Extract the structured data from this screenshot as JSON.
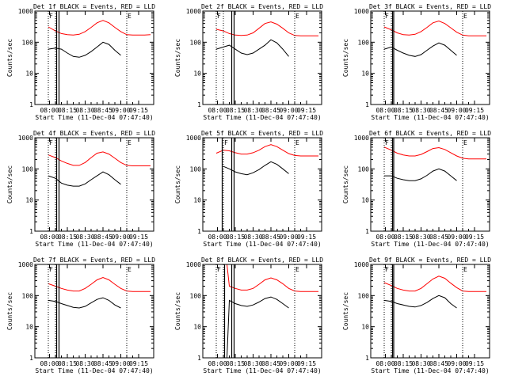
{
  "chart_data": [
    {
      "type": "line",
      "title": "Det 1f BLACK = Events, RED = LLD",
      "xlabel": "Start Time (11-Dec-04 07:47:40)",
      "ylabel": "Counts/sec",
      "yscale": "log",
      "ylim": [
        1,
        1000
      ],
      "xlim": [
        "07:47:40",
        "09:27:40"
      ],
      "xtick_labels": [
        "08:00",
        "08:15",
        "08:30",
        "08:45",
        "09:00",
        "09:15"
      ],
      "ytick_labels": [
        "1",
        "10",
        "100",
        "1000"
      ],
      "markers": [
        "F",
        "E"
      ],
      "dotted_lines": [
        "07:59",
        "08:05",
        "09:05"
      ],
      "solid_lines": [
        "08:06",
        "08:08"
      ],
      "x": [
        "07:59",
        "08:05",
        "08:10",
        "08:15",
        "08:20",
        "08:25",
        "08:30",
        "08:35",
        "08:40",
        "08:45",
        "08:50",
        "08:55",
        "09:00",
        "09:05",
        "09:10",
        "09:15",
        "09:20",
        "09:25"
      ],
      "series": [
        {
          "name": "RED = LLD",
          "color": "#ff0000",
          "values": [
            310,
            230,
            190,
            175,
            170,
            180,
            220,
            300,
            420,
            500,
            420,
            300,
            220,
            175,
            170,
            170,
            170,
            175
          ]
        },
        {
          "name": "BLACK = Events",
          "color": "#000000",
          "values": [
            60,
            65,
            60,
            45,
            35,
            33,
            38,
            50,
            70,
            100,
            85,
            55,
            38,
            null,
            null,
            null,
            null,
            null
          ]
        }
      ]
    },
    {
      "type": "line",
      "title": "Det 2f BLACK = Events, RED = LLD",
      "xlabel": "Start Time (11-Dec-04 07:47:40)",
      "ylabel": "Counts/sec",
      "yscale": "log",
      "ylim": [
        1,
        1000
      ],
      "xlim": [
        "07:47:40",
        "09:27:40"
      ],
      "xtick_labels": [
        "08:00",
        "08:15",
        "08:30",
        "08:45",
        "09:00",
        "09:15"
      ],
      "ytick_labels": [
        "1",
        "10",
        "100",
        "1000"
      ],
      "markers": [
        "F",
        "E"
      ],
      "dotted_lines": [
        "07:59",
        "08:05",
        "09:05"
      ],
      "solid_lines": [
        "08:12",
        "08:14"
      ],
      "x": [
        "07:59",
        "08:05",
        "08:10",
        "08:15",
        "08:20",
        "08:25",
        "08:30",
        "08:35",
        "08:40",
        "08:45",
        "08:50",
        "08:55",
        "09:00",
        "09:05",
        "09:10",
        "09:15",
        "09:20",
        "09:25"
      ],
      "series": [
        {
          "name": "RED = LLD",
          "color": "#ff0000",
          "values": [
            260,
            230,
            190,
            170,
            165,
            170,
            200,
            280,
            400,
            450,
            380,
            280,
            200,
            165,
            160,
            160,
            160,
            160
          ]
        },
        {
          "name": "BLACK = Events",
          "color": "#000000",
          "values": [
            60,
            70,
            80,
            60,
            45,
            40,
            45,
            60,
            80,
            120,
            95,
            60,
            35,
            null,
            null,
            null,
            null,
            null
          ]
        }
      ]
    },
    {
      "type": "line",
      "title": "Det 3f BLACK = Events, RED = LLD",
      "xlabel": "Start Time (11-Dec-04 07:47:40)",
      "ylabel": "Counts/sec",
      "yscale": "log",
      "ylim": [
        1,
        1000
      ],
      "xlim": [
        "07:47:40",
        "09:27:40"
      ],
      "xtick_labels": [
        "08:00",
        "08:15",
        "08:30",
        "08:45",
        "09:00",
        "09:15"
      ],
      "ytick_labels": [
        "1",
        "10",
        "100",
        "1000"
      ],
      "markers": [
        "F",
        "E"
      ],
      "dotted_lines": [
        "07:59",
        "08:05",
        "09:05"
      ],
      "solid_lines": [
        "08:06",
        "08:07"
      ],
      "x": [
        "07:59",
        "08:05",
        "08:10",
        "08:15",
        "08:20",
        "08:25",
        "08:30",
        "08:35",
        "08:40",
        "08:45",
        "08:50",
        "08:55",
        "09:00",
        "09:05",
        "09:10",
        "09:15",
        "09:20",
        "09:25"
      ],
      "series": [
        {
          "name": "RED = LLD",
          "color": "#ff0000",
          "values": [
            310,
            250,
            200,
            175,
            170,
            180,
            220,
            300,
            420,
            480,
            400,
            290,
            210,
            170,
            160,
            160,
            160,
            160
          ]
        },
        {
          "name": "BLACK = Events",
          "color": "#000000",
          "values": [
            60,
            70,
            55,
            45,
            38,
            35,
            40,
            55,
            75,
            95,
            80,
            55,
            38,
            null,
            null,
            null,
            null,
            null
          ]
        }
      ]
    },
    {
      "type": "line",
      "title": "Det 4f BLACK = Events, RED = LLD",
      "xlabel": "Start Time (11-Dec-04 07:47:40)",
      "ylabel": "Counts/sec",
      "yscale": "log",
      "ylim": [
        1,
        1000
      ],
      "xlim": [
        "07:47:40",
        "09:27:40"
      ],
      "xtick_labels": [
        "08:00",
        "08:15",
        "08:30",
        "08:45",
        "09:00",
        "09:15"
      ],
      "ytick_labels": [
        "1",
        "10",
        "100",
        "1000"
      ],
      "markers": [
        "F",
        "E"
      ],
      "dotted_lines": [
        "07:59",
        "08:05",
        "09:05"
      ],
      "solid_lines": [
        "08:06",
        "08:08"
      ],
      "x": [
        "07:59",
        "08:05",
        "08:10",
        "08:15",
        "08:20",
        "08:25",
        "08:30",
        "08:35",
        "08:40",
        "08:45",
        "08:50",
        "08:55",
        "09:00",
        "09:05",
        "09:10",
        "09:15",
        "09:20",
        "09:25"
      ],
      "series": [
        {
          "name": "RED = LLD",
          "color": "#ff0000",
          "values": [
            280,
            230,
            180,
            150,
            130,
            130,
            160,
            230,
            320,
            350,
            300,
            220,
            160,
            130,
            125,
            125,
            125,
            125
          ]
        },
        {
          "name": "BLACK = Events",
          "color": "#000000",
          "values": [
            60,
            50,
            35,
            30,
            28,
            28,
            33,
            45,
            60,
            80,
            65,
            45,
            32,
            null,
            null,
            null,
            null,
            null
          ]
        }
      ]
    },
    {
      "type": "line",
      "title": "Det 5f BLACK = Events, RED = LLD",
      "xlabel": "Start Time (11-Dec-04 07:47:40)",
      "ylabel": "Counts/sec",
      "yscale": "log",
      "ylim": [
        1,
        1000
      ],
      "xlim": [
        "07:47:40",
        "09:27:40"
      ],
      "xtick_labels": [
        "08:00",
        "08:15",
        "08:30",
        "08:45",
        "09:00",
        "09:15"
      ],
      "ytick_labels": [
        "1",
        "10",
        "100",
        "1000"
      ],
      "markers": [
        "F",
        "E"
      ],
      "dotted_lines": [
        "08:05",
        "09:05"
      ],
      "solid_lines": [
        "08:04",
        "08:12",
        "08:14"
      ],
      "x": [
        "07:59",
        "08:05",
        "08:10",
        "08:15",
        "08:20",
        "08:25",
        "08:30",
        "08:35",
        "08:40",
        "08:45",
        "08:50",
        "08:55",
        "09:00",
        "09:05",
        "09:10",
        "09:15",
        "09:20",
        "09:25"
      ],
      "series": [
        {
          "name": "RED = LLD",
          "color": "#ff0000",
          "values": [
            320,
            400,
            380,
            330,
            300,
            300,
            330,
            400,
            520,
            600,
            520,
            400,
            310,
            270,
            260,
            260,
            260,
            260
          ]
        },
        {
          "name": "BLACK = Events",
          "color": "#000000",
          "values": [
            null,
            120,
            100,
            80,
            70,
            65,
            75,
            95,
            130,
            170,
            140,
            100,
            70,
            null,
            null,
            null,
            null,
            null
          ]
        }
      ]
    },
    {
      "type": "line",
      "title": "Det 6f BLACK = Events, RED = LLD",
      "xlabel": "Start Time (11-Dec-04 07:47:40)",
      "ylabel": "Counts/sec",
      "yscale": "log",
      "ylim": [
        1,
        1000
      ],
      "xlim": [
        "07:47:40",
        "09:27:40"
      ],
      "xtick_labels": [
        "08:00",
        "08:15",
        "08:30",
        "08:45",
        "09:00",
        "09:15"
      ],
      "ytick_labels": [
        "1",
        "10",
        "100",
        "1000"
      ],
      "markers": [
        "F",
        "E"
      ],
      "dotted_lines": [
        "07:59",
        "08:05",
        "09:05"
      ],
      "solid_lines": [
        "08:06",
        "08:07"
      ],
      "x": [
        "07:59",
        "08:05",
        "08:10",
        "08:15",
        "08:20",
        "08:25",
        "08:30",
        "08:35",
        "08:40",
        "08:45",
        "08:50",
        "08:55",
        "09:00",
        "09:05",
        "09:10",
        "09:15",
        "09:20",
        "09:25"
      ],
      "series": [
        {
          "name": "RED = LLD",
          "color": "#ff0000",
          "values": [
            500,
            400,
            320,
            280,
            260,
            260,
            290,
            360,
            450,
            480,
            420,
            330,
            260,
            220,
            210,
            210,
            210,
            210
          ]
        },
        {
          "name": "BLACK = Events",
          "color": "#000000",
          "values": [
            60,
            60,
            50,
            45,
            42,
            42,
            48,
            62,
            85,
            100,
            85,
            60,
            42,
            null,
            null,
            null,
            null,
            null
          ]
        }
      ]
    },
    {
      "type": "line",
      "title": "Det 7f BLACK = Events, RED = LLD",
      "xlabel": "Start Time (11-Dec-04 07:47:40)",
      "ylabel": "Counts/sec",
      "yscale": "log",
      "ylim": [
        1,
        1000
      ],
      "xlim": [
        "07:47:40",
        "09:27:40"
      ],
      "xtick_labels": [
        "08:00",
        "08:15",
        "08:30",
        "08:45",
        "09:00",
        "09:15"
      ],
      "ytick_labels": [
        "1",
        "10",
        "100",
        "1000"
      ],
      "markers": [
        "F",
        "E"
      ],
      "dotted_lines": [
        "07:59",
        "08:05",
        "09:05"
      ],
      "solid_lines": [
        "08:06",
        "08:08"
      ],
      "x": [
        "07:59",
        "08:05",
        "08:10",
        "08:15",
        "08:20",
        "08:25",
        "08:30",
        "08:35",
        "08:40",
        "08:45",
        "08:50",
        "08:55",
        "09:00",
        "09:05",
        "09:10",
        "09:15",
        "09:20",
        "09:25"
      ],
      "series": [
        {
          "name": "RED = LLD",
          "color": "#ff0000",
          "values": [
            240,
            200,
            170,
            150,
            140,
            140,
            170,
            230,
            320,
            380,
            320,
            230,
            170,
            140,
            135,
            135,
            135,
            135
          ]
        },
        {
          "name": "BLACK = Events",
          "color": "#000000",
          "values": [
            70,
            65,
            55,
            48,
            42,
            40,
            45,
            58,
            75,
            85,
            70,
            50,
            40,
            null,
            null,
            null,
            null,
            null
          ]
        }
      ]
    },
    {
      "type": "line",
      "title": "Det 8f BLACK = Events, RED = LLD",
      "xlabel": "Start Time (11-Dec-04 07:47:40)",
      "ylabel": "Counts/sec",
      "yscale": "log",
      "ylim": [
        1,
        1000
      ],
      "xlim": [
        "07:47:40",
        "09:27:40"
      ],
      "xtick_labels": [
        "08:00",
        "08:15",
        "08:30",
        "08:45",
        "09:00",
        "09:15"
      ],
      "ytick_labels": [
        "1",
        "10",
        "100",
        "1000"
      ],
      "markers": [
        "F",
        "E"
      ],
      "dotted_lines": [
        "07:59",
        "08:05",
        "09:05"
      ],
      "solid_lines": [
        "08:06",
        "08:12",
        "08:14"
      ],
      "x": [
        "08:00",
        "08:03",
        "08:05",
        "08:08",
        "08:10",
        "08:15",
        "08:20",
        "08:25",
        "08:30",
        "08:35",
        "08:40",
        "08:45",
        "08:50",
        "08:55",
        "09:00",
        "09:05",
        "09:10",
        "09:15",
        "09:20",
        "09:25"
      ],
      "series": [
        {
          "name": "RED = LLD",
          "color": "#ff0000",
          "values": [
            1000,
            1000,
            1000,
            1000,
            200,
            170,
            150,
            150,
            170,
            230,
            320,
            370,
            320,
            240,
            170,
            140,
            135,
            135,
            135,
            135
          ]
        },
        {
          "name": "BLACK = Events",
          "color": "#000000",
          "values": [
            null,
            null,
            1,
            1,
            70,
            55,
            48,
            45,
            50,
            62,
            80,
            90,
            75,
            55,
            40,
            null,
            null,
            null,
            null,
            null
          ]
        }
      ]
    },
    {
      "type": "line",
      "title": "Det 9f BLACK = Events, RED = LLD",
      "xlabel": "Start Time (11-Dec-04 07:47:40)",
      "ylabel": "Counts/sec",
      "yscale": "log",
      "ylim": [
        1,
        1000
      ],
      "xlim": [
        "07:47:40",
        "09:27:40"
      ],
      "xtick_labels": [
        "08:00",
        "08:15",
        "08:30",
        "08:45",
        "09:00",
        "09:15"
      ],
      "ytick_labels": [
        "1",
        "10",
        "100",
        "1000"
      ],
      "markers": [
        "F",
        "E"
      ],
      "dotted_lines": [
        "07:59",
        "08:05",
        "09:05"
      ],
      "solid_lines": [
        "08:06",
        "08:07"
      ],
      "x": [
        "07:59",
        "08:05",
        "08:10",
        "08:15",
        "08:20",
        "08:25",
        "08:30",
        "08:35",
        "08:40",
        "08:45",
        "08:50",
        "08:55",
        "09:00",
        "09:05",
        "09:10",
        "09:15",
        "09:20",
        "09:25"
      ],
      "series": [
        {
          "name": "RED = LLD",
          "color": "#ff0000",
          "values": [
            260,
            210,
            170,
            150,
            140,
            140,
            170,
            240,
            340,
            420,
            360,
            250,
            180,
            140,
            135,
            135,
            135,
            135
          ]
        },
        {
          "name": "BLACK = Events",
          "color": "#000000",
          "values": [
            70,
            65,
            55,
            50,
            45,
            43,
            48,
            60,
            80,
            100,
            85,
            55,
            40,
            null,
            null,
            null,
            null,
            null
          ]
        }
      ]
    }
  ]
}
